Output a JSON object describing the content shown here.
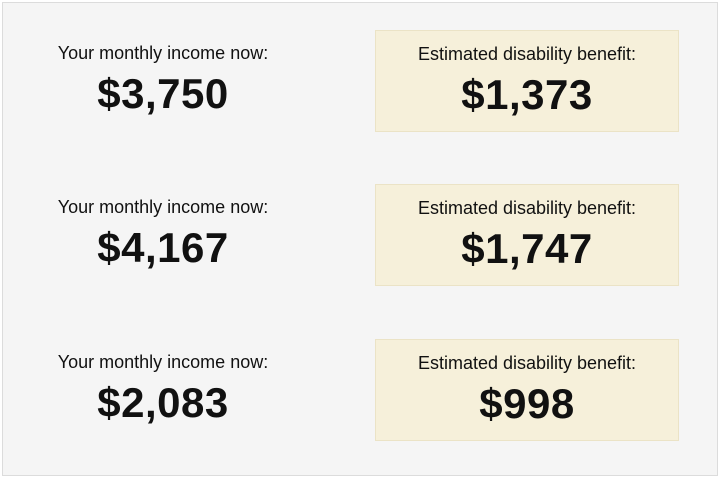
{
  "rows": [
    {
      "income_label": "Your monthly income now:",
      "income": "$3,750",
      "benefit_label": "Estimated disability benefit:",
      "benefit": "$1,373"
    },
    {
      "income_label": "Your monthly income now:",
      "income": "$4,167",
      "benefit_label": "Estimated disability benefit:",
      "benefit": "$1,747"
    },
    {
      "income_label": "Your monthly income now:",
      "income": "$2,083",
      "benefit_label": "Estimated disability benefit:",
      "benefit": "$998"
    }
  ]
}
